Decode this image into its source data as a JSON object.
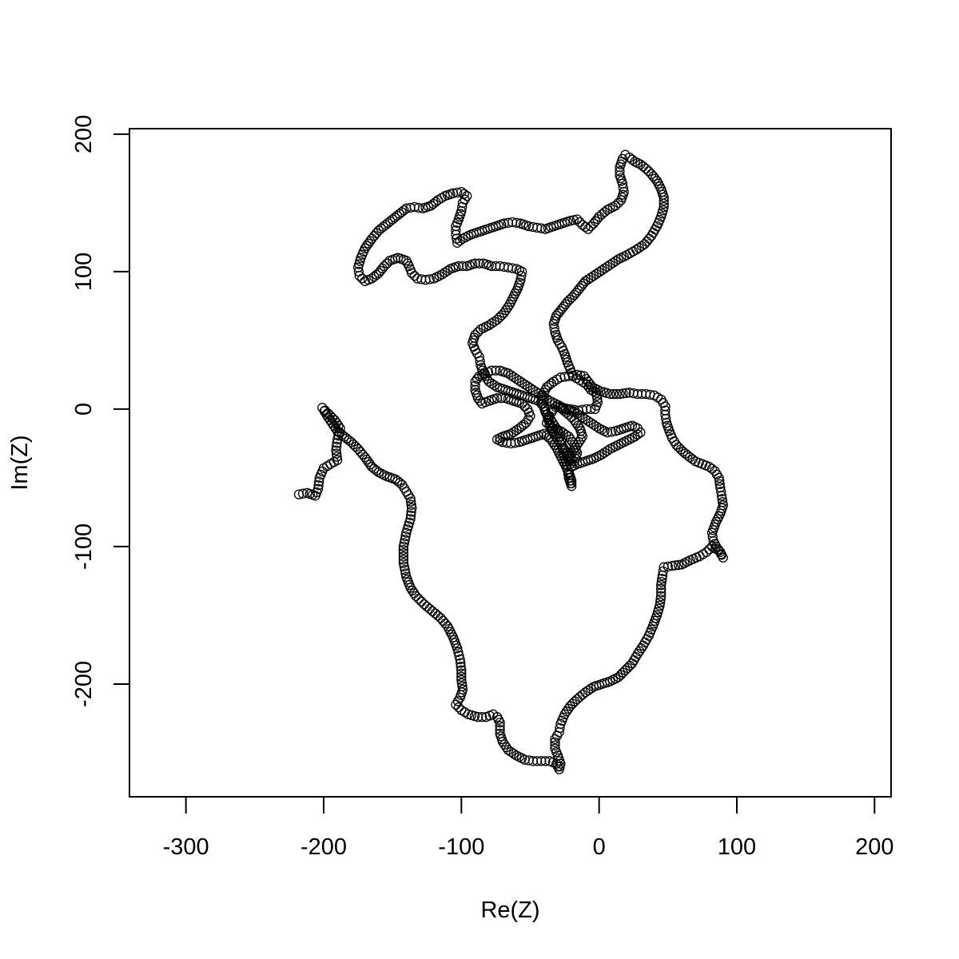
{
  "chart_data": {
    "type": "scatter",
    "title": "",
    "xlabel": "Re(Z)",
    "ylabel": "Im(Z)",
    "xlim": [
      -341,
      212
    ],
    "ylim": [
      -282,
      204
    ],
    "xticks": [
      -300,
      -200,
      -100,
      0,
      100,
      200
    ],
    "yticks": [
      -200,
      -100,
      0,
      100,
      200
    ],
    "xtick_labels": [
      "-300",
      "-200",
      "-100",
      "0",
      "100",
      "200"
    ],
    "ytick_labels": [
      "-200",
      "-100",
      "0",
      "100",
      "200"
    ],
    "grid": false,
    "legend": "none",
    "marker": "open-circle",
    "colors": {
      "points": "#000000",
      "axes": "#000000",
      "background": "#ffffff"
    },
    "path_waypoints": [
      [
        -218,
        -62
      ],
      [
        -212,
        -61
      ],
      [
        -206,
        -63
      ],
      [
        -204,
        -58
      ],
      [
        -203,
        -50
      ],
      [
        -200,
        -43
      ],
      [
        -195,
        -40
      ],
      [
        -190,
        -37
      ],
      [
        -191,
        -30
      ],
      [
        -190,
        -22
      ],
      [
        -188,
        -14
      ],
      [
        -192,
        -8
      ],
      [
        -197,
        -3
      ],
      [
        -201,
        1
      ],
      [
        -198,
        -4
      ],
      [
        -194,
        -10
      ],
      [
        -190,
        -16
      ],
      [
        -185,
        -20
      ],
      [
        -180,
        -24
      ],
      [
        -175,
        -29
      ],
      [
        -170,
        -35
      ],
      [
        -165,
        -42
      ],
      [
        -160,
        -46
      ],
      [
        -154,
        -49
      ],
      [
        -148,
        -51
      ],
      [
        -143,
        -55
      ],
      [
        -140,
        -60
      ],
      [
        -137,
        -65
      ],
      [
        -136,
        -72
      ],
      [
        -137,
        -80
      ],
      [
        -140,
        -90
      ],
      [
        -142,
        -100
      ],
      [
        -142,
        -112
      ],
      [
        -140,
        -122
      ],
      [
        -137,
        -130
      ],
      [
        -133,
        -136
      ],
      [
        -127,
        -142
      ],
      [
        -121,
        -147
      ],
      [
        -115,
        -152
      ],
      [
        -110,
        -158
      ],
      [
        -106,
        -166
      ],
      [
        -103,
        -174
      ],
      [
        -101,
        -182
      ],
      [
        -100,
        -190
      ],
      [
        -100,
        -197
      ],
      [
        -99,
        -204
      ],
      [
        -101,
        -210
      ],
      [
        -104,
        -215
      ],
      [
        -100,
        -219
      ],
      [
        -95,
        -222
      ],
      [
        -88,
        -224
      ],
      [
        -82,
        -224
      ],
      [
        -77,
        -222
      ],
      [
        -74,
        -224
      ],
      [
        -72,
        -228
      ],
      [
        -72,
        -236
      ],
      [
        -70,
        -242
      ],
      [
        -66,
        -248
      ],
      [
        -60,
        -252
      ],
      [
        -54,
        -255
      ],
      [
        -48,
        -256
      ],
      [
        -42,
        -256
      ],
      [
        -36,
        -256
      ],
      [
        -31,
        -258
      ],
      [
        -29,
        -262
      ],
      [
        -28,
        -258
      ],
      [
        -30,
        -252
      ],
      [
        -32,
        -247
      ],
      [
        -32,
        -240
      ],
      [
        -29,
        -235
      ],
      [
        -28,
        -229
      ],
      [
        -25,
        -222
      ],
      [
        -21,
        -216
      ],
      [
        -16,
        -211
      ],
      [
        -10,
        -206
      ],
      [
        -4,
        -202
      ],
      [
        2,
        -200
      ],
      [
        8,
        -198
      ],
      [
        14,
        -195
      ],
      [
        19,
        -190
      ],
      [
        24,
        -185
      ],
      [
        28,
        -178
      ],
      [
        32,
        -172
      ],
      [
        36,
        -165
      ],
      [
        39,
        -158
      ],
      [
        42,
        -150
      ],
      [
        44,
        -143
      ],
      [
        45,
        -136
      ],
      [
        45,
        -128
      ],
      [
        46,
        -121
      ],
      [
        47,
        -115
      ],
      [
        53,
        -114
      ],
      [
        60,
        -113
      ],
      [
        66,
        -110
      ],
      [
        73,
        -107
      ],
      [
        78,
        -104
      ],
      [
        82,
        -100
      ],
      [
        87,
        -103
      ],
      [
        90,
        -108
      ],
      [
        88,
        -104
      ],
      [
        85,
        -100
      ],
      [
        83,
        -96
      ],
      [
        82,
        -90
      ],
      [
        85,
        -82
      ],
      [
        88,
        -76
      ],
      [
        90,
        -70
      ],
      [
        89,
        -63
      ],
      [
        88,
        -57
      ],
      [
        87,
        -50
      ],
      [
        84,
        -45
      ],
      [
        80,
        -42
      ],
      [
        75,
        -40
      ],
      [
        70,
        -38
      ],
      [
        66,
        -35
      ],
      [
        61,
        -31
      ],
      [
        56,
        -26
      ],
      [
        53,
        -21
      ],
      [
        51,
        -16
      ],
      [
        49,
        -10
      ],
      [
        48,
        -4
      ],
      [
        48,
        2
      ],
      [
        45,
        7
      ],
      [
        40,
        10
      ],
      [
        34,
        11
      ],
      [
        28,
        11
      ],
      [
        22,
        12
      ],
      [
        15,
        11
      ],
      [
        8,
        11
      ],
      [
        1,
        13
      ],
      [
        -5,
        16
      ],
      [
        -8,
        20
      ],
      [
        -11,
        24
      ],
      [
        -16,
        25
      ],
      [
        -22,
        24
      ],
      [
        -28,
        23
      ],
      [
        -33,
        20
      ],
      [
        -38,
        16
      ],
      [
        -41,
        10
      ],
      [
        -41,
        4
      ],
      [
        -39,
        -2
      ],
      [
        -35,
        -8
      ],
      [
        -31,
        -14
      ],
      [
        -28,
        -20
      ],
      [
        -27,
        -26
      ],
      [
        -26,
        -32
      ],
      [
        -24,
        -38
      ],
      [
        -23,
        -44
      ],
      [
        -22,
        -50
      ],
      [
        -20,
        -56
      ],
      [
        -20,
        -52
      ],
      [
        -22,
        -46
      ],
      [
        -25,
        -40
      ],
      [
        -28,
        -34
      ],
      [
        -31,
        -28
      ],
      [
        -35,
        -22
      ],
      [
        -40,
        -18
      ],
      [
        -46,
        -20
      ],
      [
        -52,
        -22
      ],
      [
        -58,
        -24
      ],
      [
        -64,
        -25
      ],
      [
        -70,
        -24
      ],
      [
        -74,
        -22
      ],
      [
        -70,
        -20
      ],
      [
        -64,
        -18
      ],
      [
        -58,
        -14
      ],
      [
        -53,
        -10
      ],
      [
        -50,
        -5
      ],
      [
        -52,
        0
      ],
      [
        -56,
        4
      ],
      [
        -62,
        6
      ],
      [
        -68,
        8
      ],
      [
        -74,
        8
      ],
      [
        -80,
        6
      ],
      [
        -85,
        4
      ],
      [
        -88,
        8
      ],
      [
        -90,
        14
      ],
      [
        -90,
        20
      ],
      [
        -87,
        24
      ],
      [
        -83,
        26
      ],
      [
        -78,
        28
      ],
      [
        -72,
        28
      ],
      [
        -66,
        26
      ],
      [
        -60,
        22
      ],
      [
        -54,
        18
      ],
      [
        -48,
        14
      ],
      [
        -42,
        10
      ],
      [
        -36,
        6
      ],
      [
        -30,
        3
      ],
      [
        -24,
        0
      ],
      [
        -18,
        -2
      ],
      [
        -12,
        -6
      ],
      [
        -6,
        -10
      ],
      [
        0,
        -14
      ],
      [
        6,
        -17
      ],
      [
        12,
        -16
      ],
      [
        18,
        -14
      ],
      [
        24,
        -12
      ],
      [
        28,
        -14
      ],
      [
        30,
        -17
      ],
      [
        26,
        -20
      ],
      [
        20,
        -23
      ],
      [
        14,
        -26
      ],
      [
        8,
        -29
      ],
      [
        2,
        -33
      ],
      [
        -4,
        -36
      ],
      [
        -10,
        -38
      ],
      [
        -16,
        -40
      ],
      [
        -20,
        -42
      ],
      [
        -22,
        -38
      ],
      [
        -20,
        -32
      ],
      [
        -16,
        -26
      ],
      [
        -12,
        -20
      ],
      [
        -14,
        -14
      ],
      [
        -18,
        -8
      ],
      [
        -22,
        -4
      ],
      [
        -27,
        0
      ],
      [
        -30,
        3
      ],
      [
        -33,
        0
      ],
      [
        -36,
        -5
      ],
      [
        -38,
        -10
      ],
      [
        -34,
        -14
      ],
      [
        -28,
        -16
      ],
      [
        -22,
        -20
      ],
      [
        -18,
        -26
      ],
      [
        -16,
        -32
      ],
      [
        -18,
        -38
      ],
      [
        -22,
        -34
      ],
      [
        -26,
        -28
      ],
      [
        -30,
        -22
      ],
      [
        -34,
        -16
      ],
      [
        -36,
        -10
      ],
      [
        -38,
        -4
      ],
      [
        -40,
        2
      ],
      [
        -44,
        6
      ],
      [
        -50,
        8
      ],
      [
        -56,
        10
      ],
      [
        -62,
        12
      ],
      [
        -68,
        14
      ],
      [
        -74,
        16
      ],
      [
        -80,
        20
      ],
      [
        -84,
        26
      ],
      [
        -86,
        32
      ],
      [
        -87,
        38
      ],
      [
        -90,
        43
      ],
      [
        -92,
        48
      ],
      [
        -90,
        54
      ],
      [
        -86,
        58
      ],
      [
        -80,
        61
      ],
      [
        -74,
        65
      ],
      [
        -69,
        70
      ],
      [
        -65,
        76
      ],
      [
        -62,
        82
      ],
      [
        -59,
        88
      ],
      [
        -57,
        94
      ],
      [
        -56,
        100
      ],
      [
        -60,
        102
      ],
      [
        -66,
        103
      ],
      [
        -72,
        104
      ],
      [
        -78,
        104
      ],
      [
        -84,
        106
      ],
      [
        -90,
        106
      ],
      [
        -96,
        104
      ],
      [
        -102,
        104
      ],
      [
        -108,
        102
      ],
      [
        -114,
        98
      ],
      [
        -120,
        95
      ],
      [
        -126,
        94
      ],
      [
        -132,
        95
      ],
      [
        -136,
        99
      ],
      [
        -138,
        104
      ],
      [
        -140,
        108
      ],
      [
        -146,
        110
      ],
      [
        -152,
        108
      ],
      [
        -156,
        104
      ],
      [
        -160,
        99
      ],
      [
        -165,
        95
      ],
      [
        -170,
        93
      ],
      [
        -174,
        97
      ],
      [
        -175,
        103
      ],
      [
        -173,
        110
      ],
      [
        -170,
        117
      ],
      [
        -165,
        124
      ],
      [
        -160,
        130
      ],
      [
        -155,
        134
      ],
      [
        -150,
        138
      ],
      [
        -145,
        142
      ],
      [
        -140,
        146
      ],
      [
        -134,
        147
      ],
      [
        -128,
        146
      ],
      [
        -122,
        148
      ],
      [
        -117,
        152
      ],
      [
        -112,
        155
      ],
      [
        -106,
        157
      ],
      [
        -100,
        158
      ],
      [
        -96,
        155
      ],
      [
        -99,
        150
      ],
      [
        -100,
        144
      ],
      [
        -102,
        138
      ],
      [
        -104,
        133
      ],
      [
        -104,
        127
      ],
      [
        -103,
        121
      ],
      [
        -99,
        124
      ],
      [
        -93,
        127
      ],
      [
        -87,
        129
      ],
      [
        -81,
        131
      ],
      [
        -75,
        133
      ],
      [
        -69,
        135
      ],
      [
        -63,
        136
      ],
      [
        -57,
        135
      ],
      [
        -51,
        133
      ],
      [
        -45,
        132
      ],
      [
        -39,
        131
      ],
      [
        -33,
        133
      ],
      [
        -27,
        135
      ],
      [
        -21,
        137
      ],
      [
        -16,
        138
      ],
      [
        -12,
        134
      ],
      [
        -8,
        131
      ],
      [
        -4,
        135
      ],
      [
        0,
        140
      ],
      [
        6,
        145
      ],
      [
        12,
        148
      ],
      [
        16,
        152
      ],
      [
        18,
        158
      ],
      [
        17,
        164
      ],
      [
        15,
        170
      ],
      [
        15,
        176
      ],
      [
        17,
        182
      ],
      [
        19,
        185
      ],
      [
        22,
        183
      ],
      [
        26,
        180
      ],
      [
        30,
        178
      ],
      [
        34,
        175
      ],
      [
        38,
        171
      ],
      [
        42,
        166
      ],
      [
        45,
        160
      ],
      [
        47,
        154
      ],
      [
        47,
        147
      ],
      [
        45,
        140
      ],
      [
        42,
        133
      ],
      [
        38,
        126
      ],
      [
        33,
        120
      ],
      [
        27,
        116
      ],
      [
        20,
        112
      ],
      [
        14,
        109
      ],
      [
        8,
        105
      ],
      [
        2,
        101
      ],
      [
        -4,
        97
      ],
      [
        -10,
        93
      ],
      [
        -14,
        88
      ],
      [
        -18,
        83
      ],
      [
        -23,
        78
      ],
      [
        -27,
        73
      ],
      [
        -31,
        68
      ],
      [
        -33,
        62
      ],
      [
        -32,
        56
      ],
      [
        -30,
        50
      ],
      [
        -27,
        45
      ],
      [
        -25,
        40
      ],
      [
        -23,
        34
      ],
      [
        -21,
        29
      ],
      [
        -19,
        24
      ],
      [
        -14,
        21
      ],
      [
        -9,
        18
      ],
      [
        -6,
        14
      ],
      [
        -2,
        12
      ],
      [
        -1,
        5
      ],
      [
        -3,
        0
      ],
      [
        -9,
        0
      ],
      [
        -15,
        -1
      ],
      [
        -21,
        0
      ],
      [
        -27,
        1
      ]
    ]
  }
}
